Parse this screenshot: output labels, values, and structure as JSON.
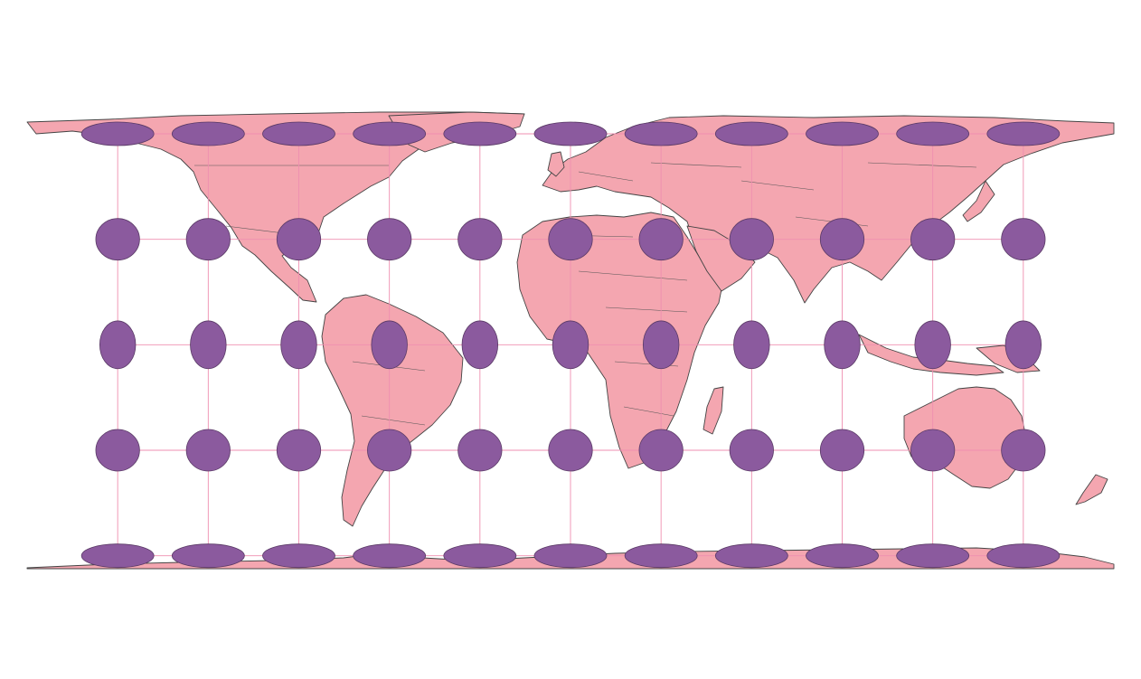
{
  "map": {
    "title": "",
    "projection": "equirectangular",
    "indicatrix": {
      "longitudes_deg": [
        -150,
        -120,
        -90,
        -60,
        -30,
        0,
        30,
        60,
        90,
        120,
        150
      ],
      "latitudes_deg": [
        70,
        35,
        0,
        -35,
        -70
      ]
    },
    "colors": {
      "land": "#f4a6b0",
      "ellipse": "#8b5a9e",
      "graticule": "#ef8fb0",
      "coastline": "#444444",
      "background": "#ffffff"
    }
  }
}
